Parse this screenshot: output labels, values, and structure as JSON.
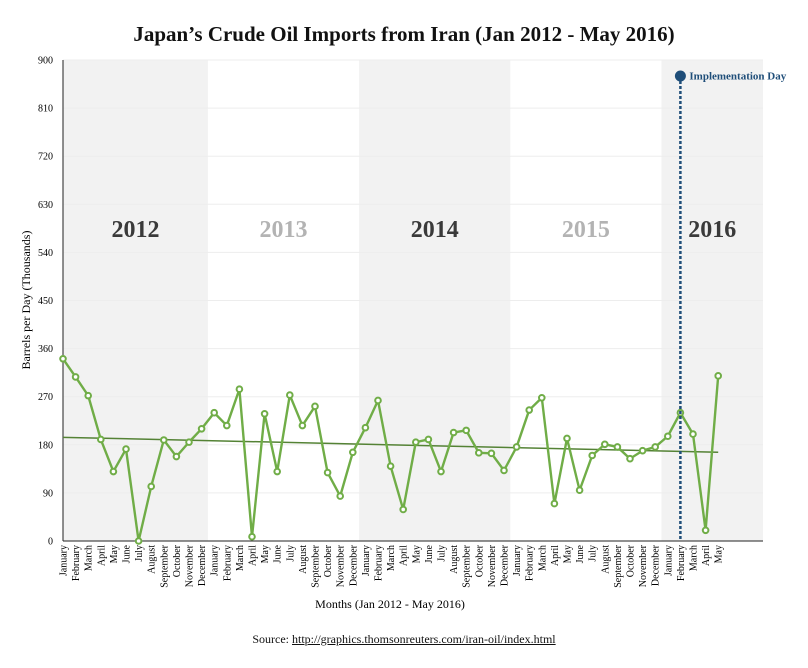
{
  "title": "Japan’s Crude Oil Imports from Iran (Jan 2012 - May 2016)",
  "source": {
    "prefix": "Source: ",
    "url": "http://graphics.thomsonreuters.com/iran-oil/index.html"
  },
  "colors": {
    "series": "#70ad47",
    "trend": "#548235",
    "band": "#f2f2f2",
    "marker": "#1f4e79",
    "year_dark": "#3a3a3a",
    "year_light": "#b3b3b3"
  },
  "chart_data": {
    "type": "line",
    "xlabel": "Months (Jan 2012 - May 2016)",
    "ylabel": "Barrels per Day (Thousands)",
    "ylim": [
      0,
      900
    ],
    "yticks": [
      0,
      90,
      180,
      270,
      360,
      450,
      540,
      630,
      720,
      810,
      900
    ],
    "grid": true,
    "x": [
      "January",
      "February",
      "March",
      "April",
      "May",
      "June",
      "July",
      "August",
      "September",
      "October",
      "November",
      "December",
      "January",
      "February",
      "March",
      "April",
      "May",
      "June",
      "July",
      "August",
      "September",
      "October",
      "November",
      "December",
      "January",
      "February",
      "March",
      "April",
      "May",
      "June",
      "July",
      "August",
      "September",
      "October",
      "November",
      "December",
      "January",
      "February",
      "March",
      "April",
      "May",
      "June",
      "July",
      "August",
      "September",
      "October",
      "November",
      "December",
      "January",
      "February",
      "March",
      "April",
      "May"
    ],
    "series": [
      {
        "values": [
          341,
          307,
          272,
          190,
          130,
          172,
          0,
          102,
          189,
          158,
          185,
          210,
          240,
          216,
          284,
          8,
          238,
          130,
          273,
          216,
          252,
          128,
          84,
          166,
          212,
          263,
          140,
          59,
          185,
          190,
          130,
          203,
          207,
          165,
          164,
          132,
          176,
          245,
          268,
          70,
          192,
          95,
          160,
          181,
          176,
          154,
          169,
          176,
          196,
          240,
          200,
          20,
          309
        ]
      }
    ],
    "trendline": {
      "start": 194,
      "end": 166
    },
    "year_bands": [
      {
        "label": "2012",
        "start": 0,
        "end": 11,
        "shaded": true
      },
      {
        "label": "2013",
        "start": 12,
        "end": 23,
        "shaded": false
      },
      {
        "label": "2014",
        "start": 24,
        "end": 35,
        "shaded": true
      },
      {
        "label": "2015",
        "start": 36,
        "end": 47,
        "shaded": false
      },
      {
        "label": "2016",
        "start": 48,
        "end": 52,
        "shaded": true
      }
    ],
    "annotations": [
      {
        "label": "Implementation Day",
        "index": 49,
        "y": 870
      }
    ]
  }
}
